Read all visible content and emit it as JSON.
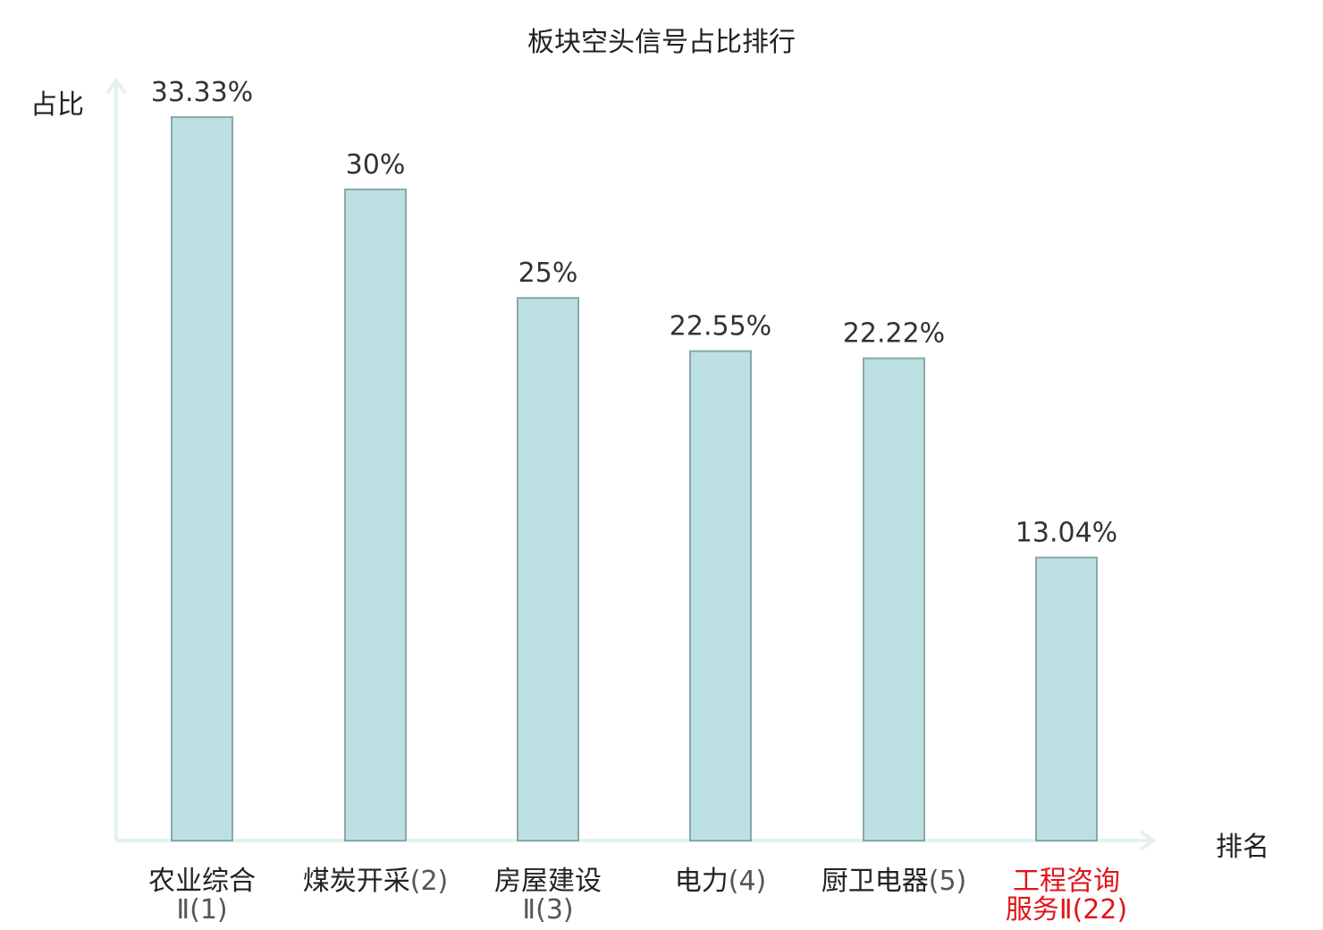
{
  "chart_data": {
    "type": "bar",
    "title": "板块空头信号占比排行",
    "ylabel": "占比",
    "xlabel": "排名",
    "ylim": [
      0,
      35
    ],
    "grid": false,
    "categories": [
      {
        "name": "农业综合",
        "suffix": "Ⅱ(1)",
        "highlight": false
      },
      {
        "name": "煤炭开采",
        "suffix": "(2)",
        "highlight": false
      },
      {
        "name": "房屋建设",
        "suffix": "Ⅱ(3)",
        "highlight": false
      },
      {
        "name": "电力",
        "suffix": "(4)",
        "highlight": false
      },
      {
        "name": "厨卫电器",
        "suffix": "(5)",
        "highlight": false
      },
      {
        "name": "工程咨询服务",
        "suffix": "Ⅱ(22)",
        "highlight": true
      }
    ],
    "values": [
      33.33,
      30,
      25,
      22.55,
      22.22,
      13.04
    ],
    "value_labels": [
      "33.33%",
      "30%",
      "25%",
      "22.55%",
      "22.22%",
      "13.04%"
    ]
  },
  "colors": {
    "bar_fill": "#bde0e2",
    "bar_stroke": "#8aa7a9",
    "axis": "#e3f2f0",
    "highlight_text": "#e0151b",
    "label_text": "#222222",
    "suffix_text": "#555555"
  }
}
